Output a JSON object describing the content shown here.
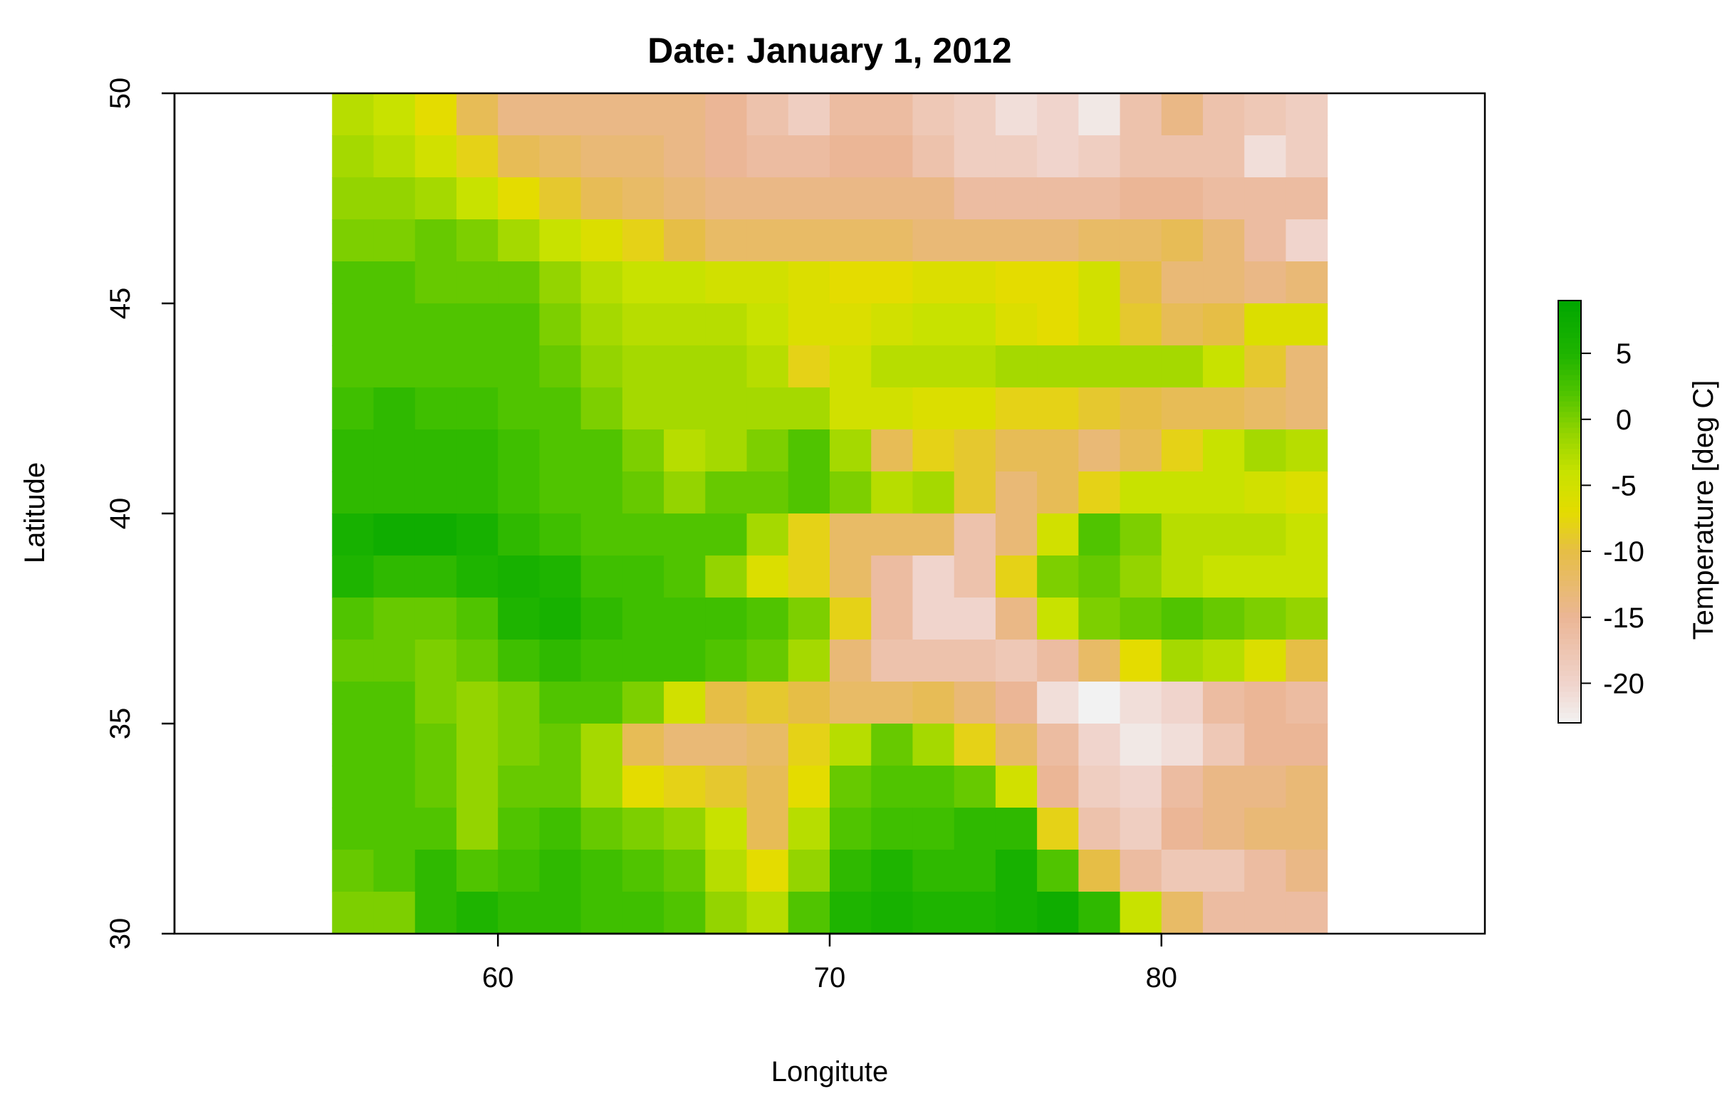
{
  "chart_data": {
    "type": "heatmap",
    "title": "Date: January 1, 2012",
    "xlabel": "Longitute",
    "ylabel": "Latitude",
    "xlim": [
      50.25,
      89.75
    ],
    "ylim": [
      30,
      50
    ],
    "x_ticks": [
      60,
      70,
      80
    ],
    "y_ticks": [
      30,
      35,
      40,
      45,
      50
    ],
    "grid": false,
    "x_start": 55,
    "x_step": 1.25,
    "y_top": 50,
    "y_step": 1,
    "row_order": "north-to-south",
    "value_range": [
      -23,
      9
    ],
    "colorbar": {
      "label": "Temperature [deg C]",
      "ticks": [
        5,
        0,
        -5,
        -10,
        -15,
        -20
      ],
      "low_color": "#f2f2f2",
      "high_color": "#00a600"
    },
    "values": [
      [
        -3,
        -4,
        -7,
        -11,
        -14,
        -14,
        -14,
        -14,
        -14,
        -15,
        -17,
        -19,
        -16,
        -16,
        -18,
        -19,
        -21,
        -20,
        -22,
        -17,
        -14,
        -17,
        -18,
        -19
      ],
      [
        -2,
        -3,
        -5,
        -8,
        -11,
        -12,
        -13,
        -13,
        -14,
        -15,
        -16,
        -16,
        -15,
        -15,
        -17,
        -19,
        -19,
        -20,
        -19,
        -17,
        -17,
        -17,
        -21,
        -19
      ],
      [
        -1,
        -1,
        -2,
        -4,
        -7,
        -9,
        -11,
        -12,
        -13,
        -14,
        -14,
        -14,
        -14,
        -14,
        -14,
        -16,
        -16,
        -16,
        -16,
        -15,
        -15,
        -16,
        -16,
        -16
      ],
      [
        0,
        0,
        1,
        0,
        -2,
        -4,
        -6,
        -8,
        -10,
        -12,
        -12,
        -12,
        -12,
        -12,
        -13,
        -13,
        -13,
        -13,
        -12,
        -12,
        -11,
        -13,
        -16,
        -20
      ],
      [
        2,
        2,
        1,
        1,
        1,
        -1,
        -3,
        -4,
        -4,
        -5,
        -5,
        -6,
        -7,
        -7,
        -6,
        -6,
        -7,
        -7,
        -5,
        -10,
        -13,
        -13,
        -14,
        -13
      ],
      [
        2,
        2,
        2,
        2,
        2,
        0,
        -2,
        -3,
        -3,
        -3,
        -4,
        -6,
        -6,
        -5,
        -4,
        -4,
        -6,
        -7,
        -5,
        -9,
        -11,
        -10,
        -6,
        -6
      ],
      [
        2,
        2,
        2,
        2,
        2,
        1,
        -1,
        -2,
        -2,
        -2,
        -3,
        -8,
        -5,
        -3,
        -3,
        -3,
        -2,
        -2,
        -2,
        -2,
        -2,
        -4,
        -9,
        -13
      ],
      [
        3,
        4,
        3,
        3,
        2,
        2,
        0,
        -2,
        -2,
        -2,
        -2,
        -2,
        -5,
        -5,
        -6,
        -6,
        -8,
        -8,
        -9,
        -10,
        -11,
        -11,
        -12,
        -13
      ],
      [
        4,
        4,
        4,
        4,
        3,
        2,
        2,
        0,
        -3,
        -2,
        0,
        2,
        -2,
        -11,
        -8,
        -9,
        -11,
        -11,
        -13,
        -11,
        -8,
        -4,
        -2,
        -3
      ],
      [
        4,
        4,
        4,
        4,
        3,
        2,
        2,
        1,
        -1,
        1,
        1,
        2,
        0,
        -3,
        -2,
        -9,
        -13,
        -11,
        -8,
        -4,
        -4,
        -4,
        -5,
        -6
      ],
      [
        6,
        7,
        7,
        6,
        4,
        3,
        2,
        2,
        2,
        2,
        -2,
        -8,
        -12,
        -12,
        -12,
        -17,
        -13,
        -5,
        2,
        0,
        -3,
        -3,
        -3,
        -4
      ],
      [
        5,
        4,
        4,
        5,
        6,
        5,
        3,
        3,
        2,
        -1,
        -6,
        -8,
        -12,
        -16,
        -20,
        -17,
        -8,
        0,
        1,
        -1,
        -3,
        -4,
        -4,
        -4
      ],
      [
        2,
        1,
        1,
        2,
        5,
        6,
        4,
        3,
        3,
        3,
        2,
        0,
        -8,
        -16,
        -20,
        -20,
        -14,
        -4,
        0,
        1,
        2,
        1,
        0,
        -1
      ],
      [
        1,
        1,
        0,
        1,
        3,
        4,
        3,
        3,
        3,
        2,
        1,
        -2,
        -13,
        -17,
        -17,
        -17,
        -18,
        -16,
        -12,
        -7,
        -2,
        -3,
        -6,
        -10
      ],
      [
        2,
        2,
        0,
        -1,
        0,
        2,
        2,
        0,
        -5,
        -10,
        -9,
        -10,
        -12,
        -12,
        -11,
        -13,
        -15,
        -21,
        -24,
        -21,
        -20,
        -16,
        -15,
        -16
      ],
      [
        2,
        2,
        1,
        -1,
        0,
        1,
        -2,
        -11,
        -13,
        -13,
        -12,
        -8,
        -3,
        1,
        -2,
        -8,
        -12,
        -16,
        -20,
        -22,
        -21,
        -18,
        -15,
        -15
      ],
      [
        2,
        2,
        1,
        -1,
        1,
        1,
        -2,
        -7,
        -8,
        -9,
        -11,
        -7,
        1,
        2,
        2,
        1,
        -5,
        -15,
        -19,
        -20,
        -16,
        -14,
        -14,
        -13
      ],
      [
        2,
        2,
        2,
        -1,
        2,
        3,
        1,
        0,
        -1,
        -4,
        -11,
        -3,
        2,
        3,
        3,
        4,
        4,
        -8,
        -17,
        -19,
        -15,
        -14,
        -13,
        -13
      ],
      [
        1,
        2,
        4,
        2,
        3,
        4,
        3,
        2,
        1,
        -3,
        -7,
        -1,
        4,
        5,
        4,
        4,
        6,
        2,
        -10,
        -16,
        -18,
        -18,
        -16,
        -14
      ],
      [
        0,
        0,
        4,
        5,
        4,
        4,
        3,
        3,
        2,
        -1,
        -3,
        2,
        5,
        6,
        5,
        5,
        6,
        7,
        4,
        -4,
        -12,
        -16,
        -16,
        -16
      ]
    ]
  }
}
